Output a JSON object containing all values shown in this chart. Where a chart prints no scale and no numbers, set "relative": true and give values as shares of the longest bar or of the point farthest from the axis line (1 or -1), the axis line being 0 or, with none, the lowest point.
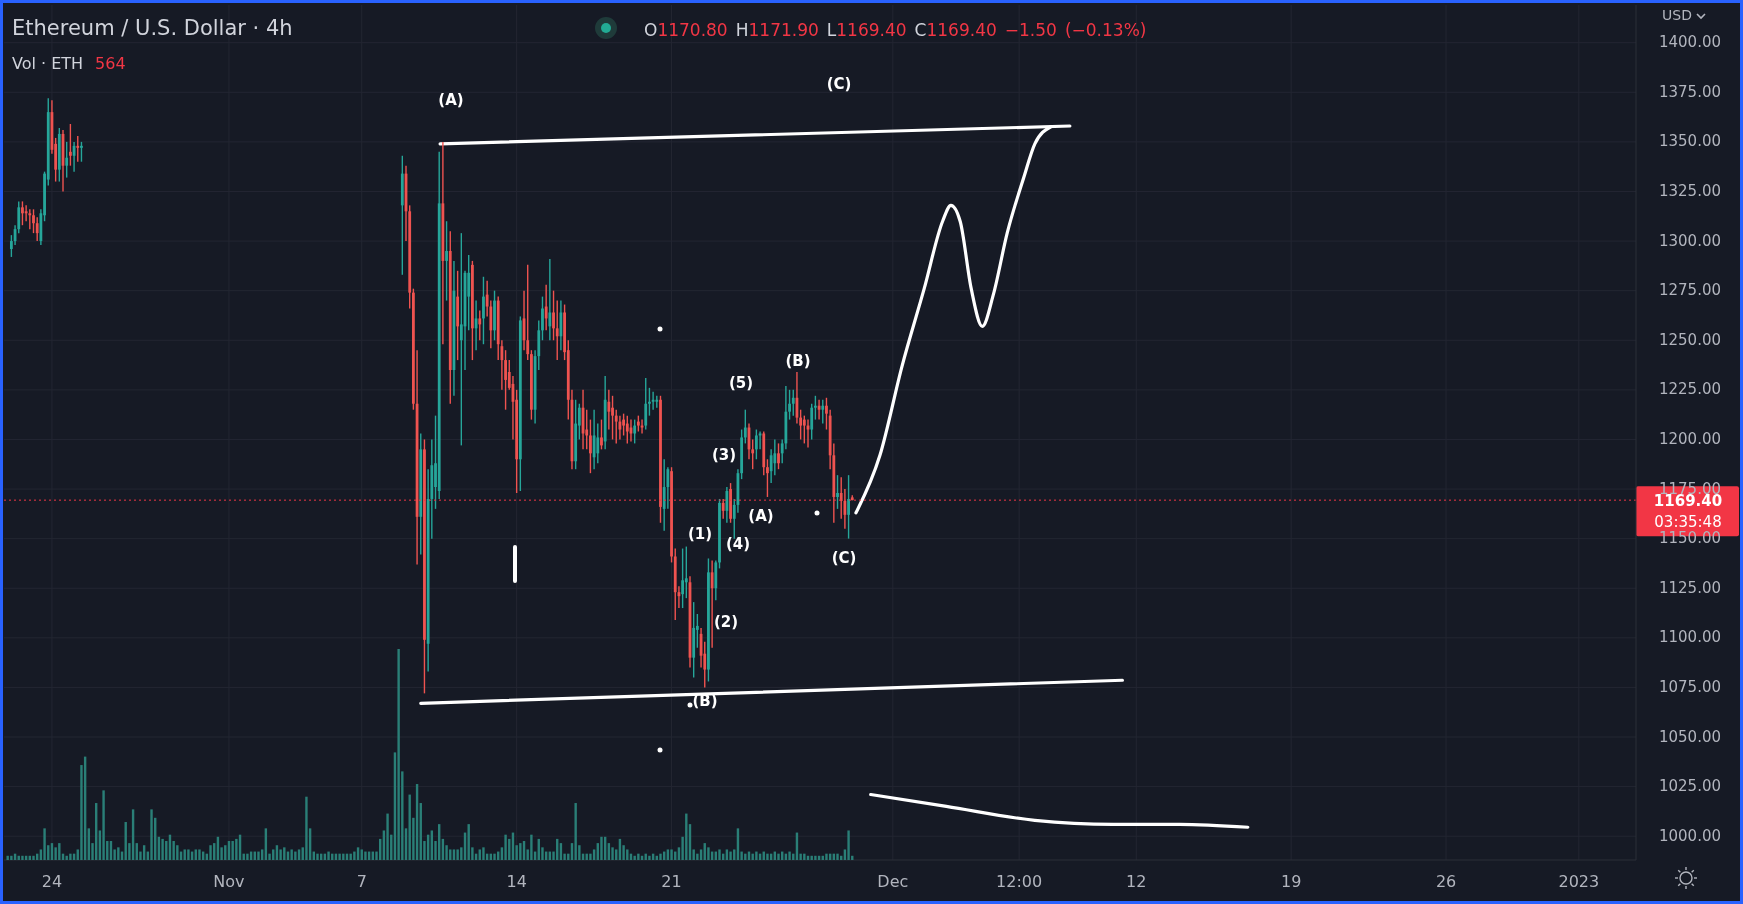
{
  "chart_data": [
    {
      "type": "candlestick",
      "title": "Ethereum / U.S. Dollar · 4h",
      "ylabel": "USD",
      "grid": true,
      "xlim": [
        "2022-10-21T20:00",
        "2023-01-03T14:00"
      ],
      "ylim": [
        988,
        1419
      ],
      "xticks": [
        {
          "value": "2022-10-24",
          "label": null
        },
        {
          "value": "2022-11-01",
          "label": null
        },
        {
          "value": "2022-11-07",
          "label": null
        },
        {
          "value": "2022-11-14",
          "label": null
        },
        {
          "value": "2022-11-21",
          "label": null
        },
        {
          "value": "2022-12-01",
          "label": null
        },
        {
          "value": "2022-12-06T17:00",
          "label": null
        },
        {
          "value": "2022-12-12",
          "label": null
        },
        {
          "value": "2022-12-19",
          "label": null
        },
        {
          "value": "2022-12-26",
          "label": null
        },
        {
          "value": "2023-01-01",
          "label": null
        }
      ],
      "yticks": [
        {
          "value": 1000,
          "label": "1000.00"
        },
        {
          "value": 1025,
          "label": "1025.00"
        },
        {
          "value": 1050,
          "label": "1050.00"
        },
        {
          "value": 1075,
          "label": "1075.00"
        },
        {
          "value": 1100,
          "label": "1100.00"
        },
        {
          "value": 1125,
          "label": "1125.00"
        },
        {
          "value": 1150,
          "label": "1150.00"
        },
        {
          "value": 1175,
          "label": "1175.00"
        },
        {
          "value": 1200,
          "label": "1200.00"
        },
        {
          "value": 1225,
          "label": "1225.00"
        },
        {
          "value": 1250,
          "label": "1250.00"
        },
        {
          "value": 1275,
          "label": "1275.00"
        },
        {
          "value": 1300,
          "label": "1300.00"
        },
        {
          "value": 1325,
          "label": "1325.00"
        },
        {
          "value": 1350,
          "label": "1350.00"
        },
        {
          "value": 1375,
          "label": "1375.00"
        },
        {
          "value": 1400,
          "label": "1400.00"
        }
      ],
      "x": [
        "2022-10-22T04:00",
        "2022-10-22T08:00",
        "2022-10-22T12:00",
        "2022-10-22T16:00",
        "2022-10-22T20:00",
        "2022-10-23T00:00",
        "2022-10-23T04:00",
        "2022-10-23T08:00",
        "2022-10-23T12:00",
        "2022-10-23T16:00",
        "2022-10-23T20:00",
        "2022-10-24T00:00",
        "2022-10-24T04:00",
        "2022-10-24T08:00",
        "2022-10-24T12:00",
        "2022-10-24T16:00",
        "2022-10-24T20:00",
        "2022-10-25T00:00",
        "2022-10-25T04:00",
        "2022-10-25T08:00",
        "2022-11-08T20:00",
        "2022-11-09T00:00",
        "2022-11-09T04:00",
        "2022-11-09T08:00",
        "2022-11-09T12:00",
        "2022-11-09T16:00",
        "2022-11-09T20:00",
        "2022-11-10T00:00",
        "2022-11-10T04:00",
        "2022-11-10T08:00",
        "2022-11-10T12:00",
        "2022-11-10T16:00",
        "2022-11-10T20:00",
        "2022-11-11T00:00",
        "2022-11-11T04:00",
        "2022-11-11T08:00",
        "2022-11-11T12:00",
        "2022-11-11T16:00",
        "2022-11-11T20:00",
        "2022-11-12T00:00",
        "2022-11-12T04:00",
        "2022-11-12T08:00",
        "2022-11-12T12:00",
        "2022-11-12T16:00",
        "2022-11-12T20:00",
        "2022-11-13T00:00",
        "2022-11-13T04:00",
        "2022-11-13T08:00",
        "2022-11-13T12:00",
        "2022-11-13T16:00",
        "2022-11-13T20:00",
        "2022-11-14T00:00",
        "2022-11-14T04:00",
        "2022-11-14T08:00",
        "2022-11-14T12:00",
        "2022-11-14T16:00",
        "2022-11-14T20:00",
        "2022-11-15T00:00",
        "2022-11-15T04:00",
        "2022-11-15T08:00",
        "2022-11-15T12:00",
        "2022-11-15T16:00",
        "2022-11-15T20:00",
        "2022-11-16T00:00",
        "2022-11-16T04:00",
        "2022-11-16T08:00",
        "2022-11-16T12:00",
        "2022-11-16T16:00",
        "2022-11-16T20:00",
        "2022-11-17T00:00",
        "2022-11-17T04:00",
        "2022-11-17T08:00",
        "2022-11-17T12:00",
        "2022-11-17T16:00",
        "2022-11-17T20:00",
        "2022-11-18T00:00",
        "2022-11-18T04:00",
        "2022-11-18T08:00",
        "2022-11-18T12:00",
        "2022-11-18T16:00",
        "2022-11-18T20:00",
        "2022-11-19T00:00",
        "2022-11-19T04:00",
        "2022-11-19T08:00",
        "2022-11-19T12:00",
        "2022-11-19T16:00",
        "2022-11-19T20:00",
        "2022-11-20T00:00",
        "2022-11-20T04:00",
        "2022-11-20T08:00",
        "2022-11-20T12:00",
        "2022-11-20T16:00",
        "2022-11-20T20:00",
        "2022-11-21T00:00",
        "2022-11-21T04:00",
        "2022-11-21T08:00",
        "2022-11-21T12:00",
        "2022-11-21T16:00",
        "2022-11-21T20:00",
        "2022-11-22T00:00",
        "2022-11-22T04:00",
        "2022-11-22T08:00",
        "2022-11-22T12:00",
        "2022-11-22T16:00",
        "2022-11-22T20:00",
        "2022-11-23T00:00",
        "2022-11-23T04:00",
        "2022-11-23T08:00",
        "2022-11-23T12:00",
        "2022-11-23T16:00",
        "2022-11-23T20:00",
        "2022-11-24T00:00",
        "2022-11-24T04:00",
        "2022-11-24T08:00",
        "2022-11-24T12:00",
        "2022-11-24T16:00",
        "2022-11-24T20:00",
        "2022-11-25T00:00",
        "2022-11-25T04:00",
        "2022-11-25T08:00",
        "2022-11-25T12:00",
        "2022-11-25T16:00",
        "2022-11-25T20:00",
        "2022-11-26T00:00",
        "2022-11-26T04:00",
        "2022-11-26T08:00",
        "2022-11-26T12:00",
        "2022-11-26T16:00",
        "2022-11-26T20:00",
        "2022-11-27T00:00",
        "2022-11-27T04:00",
        "2022-11-27T08:00",
        "2022-11-27T12:00",
        "2022-11-27T16:00",
        "2022-11-27T20:00",
        "2022-11-28T00:00",
        "2022-11-28T04:00",
        "2022-11-28T08:00",
        "2022-11-28T12:00",
        "2022-11-28T16:00",
        "2022-11-28T20:00",
        "2022-11-29T00:00",
        "2022-11-29T04:00"
      ],
      "ohlc": [
        [
          1296,
          1303,
          1292,
          1300
        ],
        [
          1300,
          1308,
          1298,
          1306
        ],
        [
          1306,
          1320,
          1304,
          1317
        ],
        [
          1317,
          1320,
          1308,
          1314
        ],
        [
          1315,
          1318,
          1310,
          1314
        ],
        [
          1314,
          1316,
          1306,
          1313
        ],
        [
          1313,
          1316,
          1304,
          1309
        ],
        [
          1309,
          1312,
          1300,
          1304
        ],
        [
          1300,
          1316,
          1298,
          1314
        ],
        [
          1313,
          1335,
          1310,
          1334
        ],
        [
          1331,
          1372,
          1328,
          1365
        ],
        [
          1365,
          1371,
          1344,
          1346
        ],
        [
          1349,
          1352,
          1330,
          1336
        ],
        [
          1336,
          1357,
          1330,
          1354
        ],
        [
          1354,
          1356,
          1325,
          1338
        ],
        [
          1338,
          1350,
          1332,
          1342
        ],
        [
          1345,
          1359,
          1338,
          1343
        ],
        [
          1343,
          1350,
          1335,
          1348
        ],
        [
          1348,
          1353,
          1340,
          1347
        ],
        [
          1347,
          1350,
          1340,
          1348
        ],
        [
          1318,
          1343,
          1283,
          1334
        ],
        [
          1334,
          1338,
          1300,
          1315
        ],
        [
          1315,
          1318,
          1266,
          1274
        ],
        [
          1274,
          1276,
          1215,
          1218
        ],
        [
          1218,
          1245,
          1137,
          1161
        ],
        [
          1161,
          1203,
          1142,
          1195
        ],
        [
          1195,
          1200,
          1072,
          1099
        ],
        [
          1097,
          1185,
          1083,
          1170
        ],
        [
          1170,
          1200,
          1150,
          1187
        ],
        [
          1176,
          1212,
          1165,
          1188
        ],
        [
          1174,
          1345,
          1170,
          1319
        ],
        [
          1319,
          1350,
          1248,
          1290
        ],
        [
          1290,
          1310,
          1270,
          1295
        ],
        [
          1295,
          1305,
          1218,
          1235
        ],
        [
          1235,
          1290,
          1222,
          1275
        ],
        [
          1272,
          1285,
          1240,
          1257
        ],
        [
          1250,
          1304,
          1197,
          1258
        ],
        [
          1257,
          1285,
          1235,
          1284
        ],
        [
          1272,
          1293,
          1255,
          1284
        ],
        [
          1288,
          1290,
          1240,
          1256
        ],
        [
          1256,
          1270,
          1245,
          1261
        ],
        [
          1261,
          1265,
          1250,
          1258
        ],
        [
          1261,
          1282,
          1248,
          1272
        ],
        [
          1273,
          1280,
          1262,
          1267
        ],
        [
          1267,
          1270,
          1246,
          1255
        ],
        [
          1255,
          1275,
          1250,
          1270
        ],
        [
          1270,
          1272,
          1240,
          1248
        ],
        [
          1247,
          1250,
          1225,
          1240
        ],
        [
          1240,
          1245,
          1215,
          1230
        ],
        [
          1234,
          1240,
          1225,
          1226
        ],
        [
          1228,
          1232,
          1200,
          1219
        ],
        [
          1220,
          1225,
          1173,
          1190
        ],
        [
          1190,
          1262,
          1174,
          1260
        ],
        [
          1261,
          1275,
          1245,
          1250
        ],
        [
          1250,
          1288,
          1240,
          1243
        ],
        [
          1243,
          1245,
          1210,
          1215
        ],
        [
          1215,
          1245,
          1208,
          1242
        ],
        [
          1242,
          1260,
          1235,
          1255
        ],
        [
          1255,
          1272,
          1250,
          1266
        ],
        [
          1267,
          1278,
          1255,
          1261
        ],
        [
          1257,
          1291,
          1250,
          1264
        ],
        [
          1264,
          1275,
          1250,
          1256
        ],
        [
          1256,
          1270,
          1240,
          1252
        ],
        [
          1252,
          1270,
          1245,
          1264
        ],
        [
          1264,
          1268,
          1240,
          1244
        ],
        [
          1245,
          1250,
          1210,
          1220
        ],
        [
          1220,
          1225,
          1185,
          1189
        ],
        [
          1189,
          1220,
          1185,
          1208
        ],
        [
          1207,
          1218,
          1200,
          1216
        ],
        [
          1216,
          1225,
          1195,
          1203
        ],
        [
          1205,
          1215,
          1195,
          1202
        ],
        [
          1202,
          1210,
          1183,
          1193
        ],
        [
          1191,
          1215,
          1185,
          1202
        ],
        [
          1193,
          1208,
          1188,
          1201
        ],
        [
          1201,
          1210,
          1195,
          1197
        ],
        [
          1199,
          1232,
          1195,
          1220
        ],
        [
          1219,
          1225,
          1205,
          1214
        ],
        [
          1216,
          1222,
          1200,
          1212
        ],
        [
          1212,
          1215,
          1198,
          1209
        ],
        [
          1209,
          1212,
          1200,
          1205
        ],
        [
          1210,
          1213,
          1202,
          1207
        ],
        [
          1208,
          1212,
          1198,
          1204
        ],
        [
          1206,
          1210,
          1199,
          1203
        ],
        [
          1203,
          1210,
          1198,
          1207
        ],
        [
          1209,
          1212,
          1204,
          1207
        ],
        [
          1207,
          1210,
          1203,
          1206
        ],
        [
          1207,
          1231,
          1205,
          1218
        ],
        [
          1218,
          1226,
          1212,
          1219
        ],
        [
          1219,
          1224,
          1215,
          1220
        ],
        [
          1219,
          1222,
          1216,
          1220
        ],
        [
          1220,
          1222,
          1158,
          1166
        ],
        [
          1165,
          1190,
          1154,
          1176
        ],
        [
          1176,
          1186,
          1165,
          1185
        ],
        [
          1184,
          1186,
          1138,
          1141
        ],
        [
          1141,
          1145,
          1109,
          1123
        ],
        [
          1123,
          1126,
          1115,
          1121
        ],
        [
          1122,
          1145,
          1115,
          1129
        ],
        [
          1128,
          1146,
          1120,
          1130
        ],
        [
          1128,
          1131,
          1085,
          1090
        ],
        [
          1090,
          1118,
          1080,
          1105
        ],
        [
          1104,
          1112,
          1095,
          1106
        ],
        [
          1102,
          1105,
          1085,
          1091
        ],
        [
          1092,
          1098,
          1075,
          1084
        ],
        [
          1084,
          1140,
          1078,
          1133
        ],
        [
          1133,
          1139,
          1095,
          1125
        ],
        [
          1125,
          1139,
          1119,
          1138
        ],
        [
          1138,
          1170,
          1135,
          1168
        ],
        [
          1168,
          1170,
          1160,
          1164
        ],
        [
          1164,
          1176,
          1158,
          1174
        ],
        [
          1175,
          1178,
          1158,
          1160
        ],
        [
          1160,
          1170,
          1150,
          1167
        ],
        [
          1167,
          1185,
          1163,
          1183
        ],
        [
          1183,
          1205,
          1180,
          1201
        ],
        [
          1201,
          1215,
          1198,
          1206
        ],
        [
          1206,
          1208,
          1190,
          1195
        ],
        [
          1195,
          1200,
          1185,
          1193
        ],
        [
          1195,
          1205,
          1190,
          1202
        ],
        [
          1202,
          1204,
          1195,
          1203
        ],
        [
          1203,
          1204,
          1182,
          1186
        ],
        [
          1186,
          1190,
          1171,
          1183
        ],
        [
          1184,
          1195,
          1178,
          1192
        ],
        [
          1188,
          1200,
          1182,
          1193
        ],
        [
          1193,
          1198,
          1185,
          1188
        ],
        [
          1193,
          1200,
          1188,
          1198
        ],
        [
          1198,
          1227,
          1195,
          1214
        ],
        [
          1214,
          1225,
          1210,
          1218
        ],
        [
          1218,
          1225,
          1212,
          1221
        ],
        [
          1221,
          1234,
          1208,
          1211
        ],
        [
          1211,
          1215,
          1200,
          1207
        ],
        [
          1210,
          1212,
          1198,
          1207
        ],
        [
          1207,
          1210,
          1196,
          1205
        ],
        [
          1205,
          1218,
          1200,
          1216
        ],
        [
          1216,
          1222,
          1210,
          1217
        ],
        [
          1217,
          1220,
          1210,
          1215
        ],
        [
          1215,
          1220,
          1208,
          1217
        ],
        [
          1217,
          1221,
          1205,
          1213
        ],
        [
          1212,
          1215,
          1185,
          1192
        ],
        [
          1192,
          1198,
          1158,
          1171
        ],
        [
          1171,
          1182,
          1165,
          1173
        ],
        [
          1173,
          1181,
          1160,
          1169
        ],
        [
          1169,
          1175,
          1155,
          1162
        ],
        [
          1162,
          1182,
          1150,
          1170
        ],
        [
          1170.8,
          1171.9,
          1169.4,
          1169.4
        ]
      ],
      "series": [
        {
          "type": "line",
          "color": "#ffffff",
          "x": [
            "2022-11-10T13:00",
            "2022-12-09T00:00"
          ],
          "values": [
            1349,
            1358
          ]
        },
        {
          "type": "line",
          "color": "#ffffff",
          "x": [
            "2022-11-09T16:00",
            "2022-12-11T09:00"
          ],
          "values": [
            1067,
            1078.6
          ]
        },
        {
          "type": "line",
          "color": "#ffffff",
          "x": [
            "2022-11-29T08:00",
            "2022-11-30T10:00",
            "2022-12-01T10:00",
            "2022-12-02T10:00",
            "2022-12-03T06:00",
            "2022-12-03T15:00",
            "2022-12-04T01:00",
            "2022-12-04T13:00",
            "2022-12-05T01:00",
            "2022-12-05T13:00",
            "2022-12-06T04:00",
            "2022-12-06T22:00",
            "2022-12-07T10:00",
            "2022-12-08T03:00"
          ],
          "values": [
            1163,
            1192,
            1237,
            1276,
            1310,
            1318,
            1310,
            1276,
            1257,
            1273,
            1304,
            1332,
            1349,
            1357.5
          ]
        },
        {
          "type": "line",
          "color": "#ffffff",
          "x": [
            "2022-11-30T00:00",
            "2022-12-03T10:00",
            "2022-12-07T10:00",
            "2022-12-10T23:00",
            "2022-12-13T23:00",
            "2022-12-17T01:00"
          ],
          "values": [
            1021,
            1015,
            1008,
            1006,
            1006,
            1004.5
          ]
        }
      ],
      "ref_lines": [
        {
          "axis": "y",
          "value": 1169.4,
          "label": "1169.40",
          "color": "#f23645",
          "line_style": "dotted"
        }
      ],
      "annotations": [
        "O1170.80 H1171.90 L1169.40 C1169.40 −1.50 (−0.13%)",
        "03:35:48",
        "(A)",
        "(C)",
        "(5)",
        "(B)",
        "(3)",
        "(A)",
        "(4)",
        "(1)",
        "(2)",
        "(B)",
        "(C)"
      ],
      "tick_labels": "y"
    },
    {
      "type": "bar",
      "title": "Vol · ETH",
      "relative": true,
      "color": "#2a7f77",
      "annotations": [
        "564"
      ],
      "tick_labels": "x",
      "xlim": [
        "2022-10-21T20:00",
        "2023-01-03T14:00"
      ],
      "xticks": [
        {
          "value": "2022-10-24",
          "label": "24"
        },
        {
          "value": "2022-11-01",
          "label": "Nov"
        },
        {
          "value": "2022-11-07",
          "label": "7"
        },
        {
          "value": "2022-11-14",
          "label": "14"
        },
        {
          "value": "2022-11-21",
          "label": "21"
        },
        {
          "value": "2022-12-01",
          "label": "Dec"
        },
        {
          "value": "2022-12-06T17:00",
          "label": "12:00"
        },
        {
          "value": "2022-12-12",
          "label": "12"
        },
        {
          "value": "2022-12-19",
          "label": "19"
        },
        {
          "value": "2022-12-26",
          "label": "26"
        },
        {
          "value": "2023-01-01",
          "label": "2023"
        }
      ],
      "x": [
        "2022-10-22T00:00",
        "2022-10-22T04:00",
        "2022-10-22T08:00",
        "2022-10-22T12:00",
        "2022-10-22T16:00",
        "2022-10-22T20:00",
        "2022-10-23T00:00",
        "2022-10-23T04:00",
        "2022-10-23T08:00",
        "2022-10-23T12:00",
        "2022-10-23T16:00",
        "2022-10-23T20:00",
        "2022-10-24T00:00",
        "2022-10-24T04:00",
        "2022-10-24T08:00",
        "2022-10-24T12:00",
        "2022-10-24T16:00",
        "2022-10-24T20:00",
        "2022-10-25T00:00",
        "2022-10-25T04:00",
        "2022-10-25T08:00",
        "2022-10-25T12:00",
        "2022-10-25T16:00",
        "2022-10-25T20:00",
        "2022-10-26T00:00",
        "2022-10-26T04:00",
        "2022-10-26T08:00",
        "2022-10-26T12:00",
        "2022-10-26T16:00",
        "2022-10-26T20:00",
        "2022-10-27T00:00",
        "2022-10-27T04:00",
        "2022-10-27T08:00",
        "2022-10-27T12:00",
        "2022-10-27T16:00",
        "2022-10-27T20:00",
        "2022-10-28T00:00",
        "2022-10-28T04:00",
        "2022-10-28T08:00",
        "2022-10-28T12:00",
        "2022-10-28T16:00",
        "2022-10-28T20:00",
        "2022-10-29T00:00",
        "2022-10-29T04:00",
        "2022-10-29T08:00",
        "2022-10-29T12:00",
        "2022-10-29T16:00",
        "2022-10-29T20:00",
        "2022-10-30T00:00",
        "2022-10-30T04:00",
        "2022-10-30T08:00",
        "2022-10-30T12:00",
        "2022-10-30T16:00",
        "2022-10-30T20:00",
        "2022-10-31T00:00",
        "2022-10-31T04:00",
        "2022-10-31T08:00",
        "2022-10-31T12:00",
        "2022-10-31T16:00",
        "2022-10-31T20:00",
        "2022-11-01T00:00",
        "2022-11-01T04:00",
        "2022-11-01T08:00",
        "2022-11-01T12:00",
        "2022-11-01T16:00",
        "2022-11-01T20:00",
        "2022-11-02T00:00",
        "2022-11-02T04:00",
        "2022-11-02T08:00",
        "2022-11-02T12:00",
        "2022-11-02T16:00",
        "2022-11-02T20:00",
        "2022-11-03T00:00",
        "2022-11-03T04:00",
        "2022-11-03T08:00",
        "2022-11-03T12:00",
        "2022-11-03T16:00",
        "2022-11-03T20:00",
        "2022-11-04T00:00",
        "2022-11-04T04:00",
        "2022-11-04T08:00",
        "2022-11-04T12:00",
        "2022-11-04T16:00",
        "2022-11-04T20:00",
        "2022-11-05T00:00",
        "2022-11-05T04:00",
        "2022-11-05T08:00",
        "2022-11-05T12:00",
        "2022-11-05T16:00",
        "2022-11-05T20:00",
        "2022-11-06T00:00",
        "2022-11-06T04:00",
        "2022-11-06T08:00",
        "2022-11-06T12:00",
        "2022-11-06T16:00",
        "2022-11-06T20:00",
        "2022-11-07T00:00",
        "2022-11-07T04:00",
        "2022-11-07T08:00",
        "2022-11-07T12:00",
        "2022-11-07T16:00",
        "2022-11-07T20:00",
        "2022-11-08T00:00",
        "2022-11-08T04:00",
        "2022-11-08T08:00",
        "2022-11-08T12:00",
        "2022-11-08T16:00",
        "2022-11-08T20:00",
        "2022-11-09T00:00",
        "2022-11-09T04:00",
        "2022-11-09T08:00",
        "2022-11-09T12:00",
        "2022-11-09T16:00",
        "2022-11-09T20:00",
        "2022-11-10T00:00",
        "2022-11-10T04:00",
        "2022-11-10T08:00",
        "2022-11-10T12:00",
        "2022-11-10T16:00",
        "2022-11-10T20:00",
        "2022-11-11T00:00",
        "2022-11-11T04:00",
        "2022-11-11T08:00",
        "2022-11-11T12:00",
        "2022-11-11T16:00",
        "2022-11-11T20:00",
        "2022-11-12T00:00",
        "2022-11-12T04:00",
        "2022-11-12T08:00",
        "2022-11-12T12:00",
        "2022-11-12T16:00",
        "2022-11-12T20:00",
        "2022-11-13T00:00",
        "2022-11-13T04:00",
        "2022-11-13T08:00",
        "2022-11-13T12:00",
        "2022-11-13T16:00",
        "2022-11-13T20:00",
        "2022-11-14T00:00",
        "2022-11-14T04:00",
        "2022-11-14T08:00",
        "2022-11-14T12:00",
        "2022-11-14T16:00",
        "2022-11-14T20:00",
        "2022-11-15T00:00",
        "2022-11-15T04:00",
        "2022-11-15T08:00",
        "2022-11-15T12:00",
        "2022-11-15T16:00",
        "2022-11-15T20:00",
        "2022-11-16T00:00",
        "2022-11-16T04:00",
        "2022-11-16T08:00",
        "2022-11-16T12:00",
        "2022-11-16T16:00",
        "2022-11-16T20:00",
        "2022-11-17T00:00",
        "2022-11-17T04:00",
        "2022-11-17T08:00",
        "2022-11-17T12:00",
        "2022-11-17T16:00",
        "2022-11-17T20:00",
        "2022-11-18T00:00",
        "2022-11-18T04:00",
        "2022-11-18T08:00",
        "2022-11-18T12:00",
        "2022-11-18T16:00",
        "2022-11-18T20:00",
        "2022-11-19T00:00",
        "2022-11-19T04:00",
        "2022-11-19T08:00",
        "2022-11-19T12:00",
        "2022-11-19T16:00",
        "2022-11-19T20:00",
        "2022-11-20T00:00",
        "2022-11-20T04:00",
        "2022-11-20T08:00",
        "2022-11-20T12:00",
        "2022-11-20T16:00",
        "2022-11-20T20:00",
        "2022-11-21T00:00",
        "2022-11-21T04:00",
        "2022-11-21T08:00",
        "2022-11-21T12:00",
        "2022-11-21T16:00",
        "2022-11-21T20:00",
        "2022-11-22T00:00",
        "2022-11-22T04:00",
        "2022-11-22T08:00",
        "2022-11-22T12:00",
        "2022-11-22T16:00",
        "2022-11-22T20:00",
        "2022-11-23T00:00",
        "2022-11-23T04:00",
        "2022-11-23T08:00",
        "2022-11-23T12:00",
        "2022-11-23T16:00",
        "2022-11-23T20:00",
        "2022-11-24T00:00",
        "2022-11-24T04:00",
        "2022-11-24T08:00",
        "2022-11-24T12:00",
        "2022-11-24T16:00",
        "2022-11-24T20:00",
        "2022-11-25T00:00",
        "2022-11-25T04:00",
        "2022-11-25T08:00",
        "2022-11-25T12:00",
        "2022-11-25T16:00",
        "2022-11-25T20:00",
        "2022-11-26T00:00",
        "2022-11-26T04:00",
        "2022-11-26T08:00",
        "2022-11-26T12:00",
        "2022-11-26T16:00",
        "2022-11-26T20:00",
        "2022-11-27T00:00",
        "2022-11-27T04:00",
        "2022-11-27T08:00",
        "2022-11-27T12:00",
        "2022-11-27T16:00",
        "2022-11-27T20:00",
        "2022-11-28T00:00",
        "2022-11-28T04:00",
        "2022-11-28T08:00",
        "2022-11-28T12:00",
        "2022-11-28T16:00",
        "2022-11-28T20:00",
        "2022-11-29T00:00",
        "2022-11-29T04:00"
      ],
      "values": [
        0.02,
        0.02,
        0.03,
        0.02,
        0.02,
        0.02,
        0.02,
        0.02,
        0.03,
        0.05,
        0.15,
        0.07,
        0.08,
        0.06,
        0.08,
        0.03,
        0.02,
        0.03,
        0.03,
        0.05,
        0.45,
        0.49,
        0.15,
        0.08,
        0.27,
        0.14,
        0.33,
        0.09,
        0.09,
        0.05,
        0.06,
        0.04,
        0.18,
        0.08,
        0.24,
        0.08,
        0.04,
        0.07,
        0.04,
        0.24,
        0.2,
        0.11,
        0.1,
        0.09,
        0.12,
        0.09,
        0.07,
        0.04,
        0.05,
        0.05,
        0.04,
        0.05,
        0.05,
        0.04,
        0.03,
        0.07,
        0.08,
        0.11,
        0.06,
        0.07,
        0.09,
        0.09,
        0.1,
        0.12,
        0.03,
        0.03,
        0.04,
        0.04,
        0.04,
        0.05,
        0.15,
        0.03,
        0.05,
        0.07,
        0.05,
        0.06,
        0.04,
        0.05,
        0.04,
        0.05,
        0.06,
        0.3,
        0.15,
        0.04,
        0.03,
        0.03,
        0.03,
        0.04,
        0.03,
        0.03,
        0.03,
        0.03,
        0.03,
        0.03,
        0.04,
        0.06,
        0.05,
        0.04,
        0.04,
        0.04,
        0.04,
        0.1,
        0.14,
        0.22,
        0.12,
        0.51,
        1,
        0.42,
        0.15,
        0.31,
        0.2,
        0.36,
        0.27,
        0.09,
        0.12,
        0.14,
        0.09,
        0.17,
        0.1,
        0.07,
        0.05,
        0.05,
        0.05,
        0.06,
        0.13,
        0.17,
        0.06,
        0.03,
        0.05,
        0.06,
        0.03,
        0.03,
        0.03,
        0.04,
        0.06,
        0.12,
        0.1,
        0.13,
        0.07,
        0.08,
        0.09,
        0.05,
        0.12,
        0.04,
        0.1,
        0.06,
        0.04,
        0.04,
        0.04,
        0.1,
        0.08,
        0.03,
        0.03,
        0.08,
        0.27,
        0.07,
        0.03,
        0.03,
        0.03,
        0.05,
        0.08,
        0.11,
        0.11,
        0.08,
        0.06,
        0.05,
        0.1,
        0.07,
        0.05,
        0.03,
        0.02,
        0.03,
        0.02,
        0.03,
        0.02,
        0.03,
        0.02,
        0.03,
        0.04,
        0.05,
        0.05,
        0.04,
        0.06,
        0.11,
        0.22,
        0.17,
        0.05,
        0.03,
        0.05,
        0.08,
        0.06,
        0.04,
        0.04,
        0.05,
        0.03,
        0.05,
        0.04,
        0.05,
        0.15,
        0.04,
        0.03,
        0.04,
        0.03,
        0.04,
        0.03,
        0.04,
        0.03,
        0.03,
        0.04,
        0.03,
        0.04,
        0.03,
        0.04,
        0.03,
        0.13,
        0.03,
        0.03,
        0.02,
        0.02,
        0.02,
        0.02,
        0.02,
        0.03,
        0.03,
        0.03,
        0.03,
        0.02,
        0.05,
        0.14,
        0.02
      ]
    }
  ]
}
